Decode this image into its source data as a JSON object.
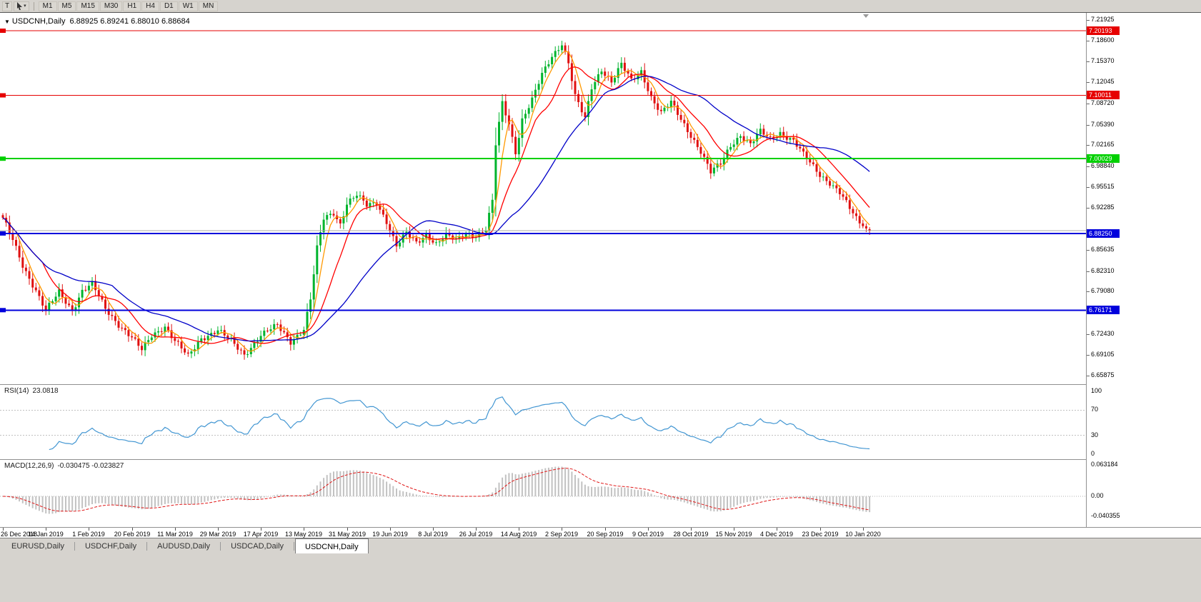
{
  "icons": {
    "dropdown_caret": "▾",
    "chart_window": "▼"
  },
  "toolbar": {
    "tool_t_label": "T",
    "timeframes": [
      "M1",
      "M5",
      "M15",
      "M30",
      "H1",
      "H4",
      "D1",
      "W1",
      "MN"
    ]
  },
  "chart": {
    "title_symbol": "USDCNH,Daily",
    "title_ohlc": "6.88925 6.89241 6.88010 6.88684",
    "price_axis_labels": [
      "7.21925",
      "7.18600",
      "7.15370",
      "7.12045",
      "7.08720",
      "7.05390",
      "7.02165",
      "6.98840",
      "6.95515",
      "6.92285",
      "6.85635",
      "6.82310",
      "6.79080",
      "6.72430",
      "6.69105",
      "6.65875"
    ],
    "levels": [
      {
        "price": 7.20193,
        "label": "7.20193",
        "color": "#e60000",
        "thickness": 1
      },
      {
        "price": 7.10011,
        "label": "7.10011",
        "color": "#e60000",
        "thickness": 1
      },
      {
        "price": 7.00029,
        "label": "7.00029",
        "color": "#00d000",
        "thickness": 2
      },
      {
        "price": 6.8825,
        "label": "6.88250",
        "color": "#0000dc",
        "thickness": 2
      },
      {
        "price": 6.76171,
        "label": "6.76171",
        "color": "#0000dc",
        "thickness": 2
      }
    ],
    "current_price": 6.88684,
    "date_labels": [
      "26 Dec 2018",
      "14 Jan 2019",
      "1 Feb 2019",
      "20 Feb 2019",
      "11 Mar 2019",
      "29 Mar 2019",
      "17 Apr 2019",
      "13 May 2019",
      "31 May 2019",
      "19 Jun 2019",
      "8 Jul 2019",
      "26 Jul 2019",
      "14 Aug 2019",
      "2 Sep 2019",
      "20 Sep 2019",
      "9 Oct 2019",
      "28 Oct 2019",
      "15 Nov 2019",
      "4 Dec 2019",
      "23 Dec 2019",
      "10 Jan 2020"
    ]
  },
  "rsi": {
    "label": "RSI(14)",
    "value": "23.0818",
    "axis_labels": [
      "100",
      "70",
      "30",
      "0"
    ],
    "levels": [
      70,
      30
    ]
  },
  "macd": {
    "label": "MACD(12,26,9)",
    "values": "-0.030475 -0.023827",
    "axis_labels": [
      "0.063184",
      "0.00",
      "-0.040355"
    ]
  },
  "tabs": [
    "EURUSD,Daily",
    "USDCHF,Daily",
    "AUDUSD,Daily",
    "USDCAD,Daily",
    "USDCNH,Daily"
  ],
  "active_tab_index": 4,
  "colors": {
    "candle_up": "#00b42d",
    "candle_down": "#e01010",
    "rsi_line": "#4296d2",
    "macd_hist": "#c2c2c2",
    "macd_signal": "#e01818",
    "current_price_line": "#a8a8a8"
  },
  "chart_data": {
    "type": "candlestick",
    "symbol": "USDCNH",
    "timeframe": "Daily",
    "ohlc_current": {
      "open": 6.88925,
      "high": 6.89241,
      "low": 6.8801,
      "close": 6.88684
    },
    "x_range": [
      "26 Dec 2018",
      "10 Jan 2020"
    ],
    "y_range": [
      6.645,
      7.23
    ],
    "candle_count": 263,
    "tick_step": 13,
    "close_anchors": [
      [
        0,
        6.905
      ],
      [
        3,
        6.872
      ],
      [
        6,
        6.833
      ],
      [
        10,
        6.793
      ],
      [
        13,
        6.76
      ],
      [
        17,
        6.79
      ],
      [
        21,
        6.762
      ],
      [
        24,
        6.792
      ],
      [
        27,
        6.802
      ],
      [
        31,
        6.764
      ],
      [
        35,
        6.74
      ],
      [
        39,
        6.718
      ],
      [
        42,
        6.698
      ],
      [
        45,
        6.722
      ],
      [
        49,
        6.737
      ],
      [
        52,
        6.713
      ],
      [
        56,
        6.688
      ],
      [
        60,
        6.718
      ],
      [
        65,
        6.73
      ],
      [
        69,
        6.712
      ],
      [
        73,
        6.692
      ],
      [
        78,
        6.722
      ],
      [
        83,
        6.737
      ],
      [
        87,
        6.713
      ],
      [
        91,
        6.732
      ],
      [
        93,
        6.778
      ],
      [
        95,
        6.858
      ],
      [
        97,
        6.906
      ],
      [
        100,
        6.916
      ],
      [
        102,
        6.898
      ],
      [
        104,
        6.93
      ],
      [
        107,
        6.942
      ],
      [
        110,
        6.926
      ],
      [
        113,
        6.932
      ],
      [
        116,
        6.902
      ],
      [
        119,
        6.862
      ],
      [
        122,
        6.882
      ],
      [
        125,
        6.868
      ],
      [
        128,
        6.882
      ],
      [
        131,
        6.866
      ],
      [
        134,
        6.878
      ],
      [
        137,
        6.872
      ],
      [
        140,
        6.883
      ],
      [
        143,
        6.88
      ],
      [
        146,
        6.888
      ],
      [
        148,
        6.932
      ],
      [
        149,
        7.022
      ],
      [
        151,
        7.088
      ],
      [
        153,
        7.056
      ],
      [
        155,
        7.012
      ],
      [
        157,
        7.062
      ],
      [
        160,
        7.092
      ],
      [
        163,
        7.132
      ],
      [
        166,
        7.162
      ],
      [
        169,
        7.183
      ],
      [
        171,
        7.152
      ],
      [
        173,
        7.098
      ],
      [
        176,
        7.062
      ],
      [
        178,
        7.112
      ],
      [
        181,
        7.142
      ],
      [
        184,
        7.122
      ],
      [
        187,
        7.148
      ],
      [
        190,
        7.122
      ],
      [
        193,
        7.138
      ],
      [
        196,
        7.098
      ],
      [
        199,
        7.072
      ],
      [
        202,
        7.088
      ],
      [
        205,
        7.062
      ],
      [
        208,
        7.038
      ],
      [
        211,
        7.012
      ],
      [
        214,
        6.978
      ],
      [
        217,
        6.992
      ],
      [
        220,
        7.022
      ],
      [
        223,
        7.038
      ],
      [
        226,
        7.022
      ],
      [
        229,
        7.042
      ],
      [
        232,
        7.032
      ],
      [
        235,
        7.042
      ],
      [
        239,
        7.028
      ],
      [
        242,
        7.006
      ],
      [
        245,
        6.988
      ],
      [
        247,
        6.976
      ],
      [
        250,
        6.963
      ],
      [
        253,
        6.946
      ],
      [
        256,
        6.921
      ],
      [
        258,
        6.906
      ],
      [
        260,
        6.894
      ],
      [
        262,
        6.88684
      ]
    ],
    "overlays": [
      {
        "name": "fast-ma",
        "color": "#ff9900",
        "period": 5
      },
      {
        "name": "mid-ma",
        "color": "#ff0000",
        "period": 13
      },
      {
        "name": "slow-ma",
        "color": "#0000c8",
        "period": 34
      }
    ],
    "indicators": [
      {
        "name": "RSI",
        "period": 14,
        "last": 23.0818
      },
      {
        "name": "MACD",
        "params": [
          12,
          26,
          9
        ],
        "last": [
          -0.030475,
          -0.023827
        ]
      }
    ]
  }
}
